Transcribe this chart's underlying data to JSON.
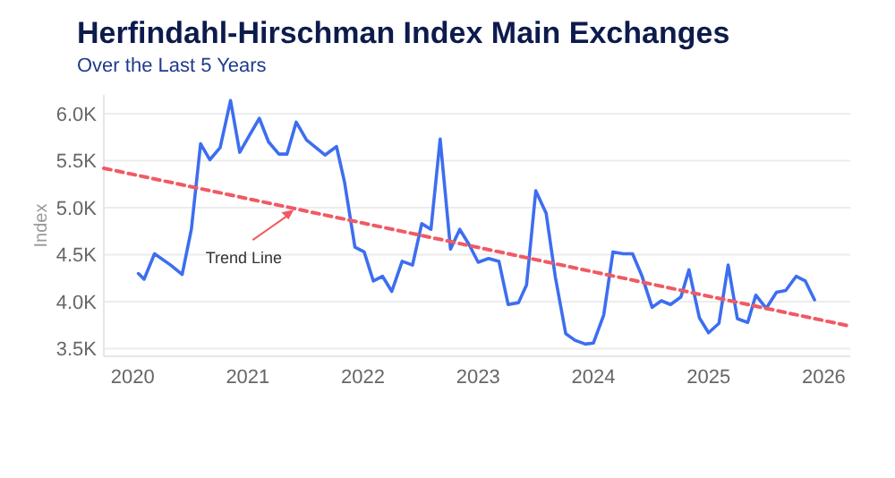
{
  "chart_data": {
    "type": "line",
    "title": "Herfindahl-Hirschman Index Main Exchanges",
    "subtitle": "Over the Last 5 Years",
    "ylabel": "Index",
    "xlim": [
      2019.75,
      2026.23
    ],
    "xticks": [
      2020,
      2021,
      2022,
      2023,
      2024,
      2025,
      2026
    ],
    "ylim": [
      3.42,
      6.2
    ],
    "yticks": [
      {
        "value": 3.5,
        "label": "3.5K"
      },
      {
        "value": 4,
        "label": "4.0K"
      },
      {
        "value": 4.5,
        "label": "4.5K"
      },
      {
        "value": 5,
        "label": "5.0K"
      },
      {
        "value": 5.5,
        "label": "5.5K"
      },
      {
        "value": 6,
        "label": "6.0K"
      }
    ],
    "grid": "y",
    "series": [
      {
        "color": "#3d6ef0",
        "line_style": "solid",
        "x": [
          2020.05,
          2020.1,
          2020.19,
          2020.33,
          2020.43,
          2020.51,
          2020.59,
          2020.67,
          2020.76,
          2020.85,
          2020.93,
          2021.01,
          2021.1,
          2021.18,
          2021.27,
          2021.34,
          2021.42,
          2021.51,
          2021.67,
          2021.77,
          2021.84,
          2021.93,
          2022.01,
          2022.09,
          2022.17,
          2022.25,
          2022.34,
          2022.43,
          2022.51,
          2022.59,
          2022.67,
          2022.76,
          2022.84,
          2022.92,
          2023.0,
          2023.09,
          2023.18,
          2023.26,
          2023.35,
          2023.42,
          2023.5,
          2023.59,
          2023.67,
          2023.76,
          2023.84,
          2023.93,
          2024.0,
          2024.09,
          2024.17,
          2024.26,
          2024.34,
          2024.42,
          2024.51,
          2024.59,
          2024.67,
          2024.76,
          2024.83,
          2024.92,
          2025.0,
          2025.09,
          2025.17,
          2025.25,
          2025.34,
          2025.41,
          2025.5,
          2025.59,
          2025.67,
          2025.76,
          2025.84,
          2025.92
        ],
        "values": [
          4.3,
          4.24,
          4.51,
          4.39,
          4.29,
          4.77,
          5.68,
          5.51,
          5.64,
          6.14,
          5.59,
          5.76,
          5.95,
          5.7,
          5.57,
          5.57,
          5.91,
          5.72,
          5.56,
          5.65,
          5.27,
          4.58,
          4.53,
          4.22,
          4.27,
          4.11,
          4.43,
          4.39,
          4.83,
          4.77,
          5.73,
          4.56,
          4.77,
          4.61,
          4.42,
          4.46,
          4.43,
          3.97,
          3.99,
          4.18,
          5.18,
          4.94,
          4.26,
          3.66,
          3.59,
          3.55,
          3.56,
          3.86,
          4.53,
          4.51,
          4.51,
          4.28,
          3.94,
          4.01,
          3.97,
          4.05,
          4.34,
          3.83,
          3.67,
          3.77,
          4.39,
          3.82,
          3.78,
          4.07,
          3.93,
          4.1,
          4.12,
          4.27,
          4.22,
          4.02
        ]
      },
      {
        "type": "line",
        "color": "#f05a64",
        "line_style": "dashed",
        "x": [
          2019.75,
          2026.23
        ],
        "values": [
          5.42,
          3.74
        ]
      }
    ],
    "annotations": [
      {
        "text": "Trend Line",
        "x": 2021.4,
        "y": 4.98
      }
    ]
  }
}
